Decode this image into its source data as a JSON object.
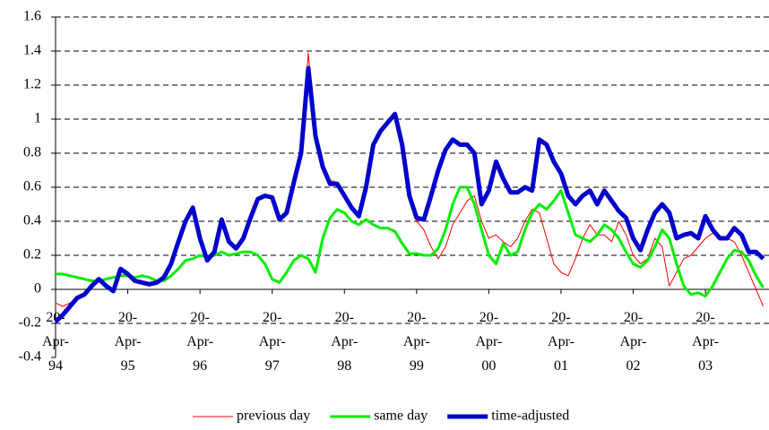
{
  "chart_data": {
    "type": "line",
    "x": [
      1994.3,
      1994.4,
      1994.5,
      1994.6,
      1994.7,
      1994.8,
      1994.9,
      1995.0,
      1995.1,
      1995.2,
      1995.3,
      1995.4,
      1995.5,
      1995.6,
      1995.7,
      1995.8,
      1995.9,
      1996.0,
      1996.1,
      1996.2,
      1996.3,
      1996.4,
      1996.5,
      1996.6,
      1996.7,
      1996.8,
      1996.9,
      1997.0,
      1997.1,
      1997.2,
      1997.3,
      1997.4,
      1997.5,
      1997.6,
      1997.7,
      1997.8,
      1997.9,
      1998.0,
      1998.1,
      1998.2,
      1998.3,
      1998.4,
      1998.5,
      1998.6,
      1998.7,
      1998.8,
      1998.9,
      1999.0,
      1999.1,
      1999.2,
      1999.3,
      1999.4,
      1999.5,
      1999.6,
      1999.7,
      1999.8,
      1999.9,
      2000.0,
      2000.1,
      2000.2,
      2000.3,
      2000.4,
      2000.5,
      2000.6,
      2000.7,
      2000.8,
      2000.9,
      2001.0,
      2001.1,
      2001.2,
      2001.3,
      2001.4,
      2001.5,
      2001.6,
      2001.7,
      2001.8,
      2001.9,
      2002.0,
      2002.1,
      2002.2,
      2002.3,
      2002.4,
      2002.5,
      2002.6,
      2002.7,
      2002.8,
      2002.9,
      2003.0,
      2003.1,
      2003.2,
      2003.3,
      2003.4,
      2003.5,
      2003.6,
      2003.7,
      2003.8,
      2003.9,
      2004.0,
      2004.1
    ],
    "series": [
      {
        "name": "previous day",
        "color": "#ff0000",
        "width": 1,
        "values": [
          -0.08,
          -0.1,
          -0.08,
          -0.05,
          -0.03,
          0.02,
          0.06,
          0.02,
          -0.01,
          0.12,
          0.09,
          0.05,
          0.04,
          0.03,
          0.04,
          0.07,
          0.15,
          0.28,
          0.4,
          0.47,
          0.3,
          0.17,
          0.22,
          0.4,
          0.28,
          0.24,
          0.3,
          0.42,
          0.52,
          0.54,
          0.53,
          0.41,
          0.45,
          0.63,
          0.82,
          1.39,
          0.92,
          0.72,
          0.64,
          0.63,
          0.55,
          0.48,
          0.44,
          0.6,
          0.85,
          0.93,
          0.98,
          1.02,
          0.85,
          0.55,
          0.4,
          0.35,
          0.25,
          0.18,
          0.25,
          0.38,
          0.45,
          0.52,
          0.55,
          0.4,
          0.3,
          0.32,
          0.28,
          0.25,
          0.3,
          0.4,
          0.47,
          0.45,
          0.3,
          0.15,
          0.1,
          0.08,
          0.18,
          0.3,
          0.38,
          0.32,
          0.32,
          0.28,
          0.4,
          0.32,
          0.2,
          0.15,
          0.18,
          0.3,
          0.25,
          0.02,
          0.1,
          0.18,
          0.2,
          0.25,
          0.3,
          0.33,
          0.3,
          0.3,
          0.28,
          0.2,
          0.1,
          0.0,
          -0.1
        ]
      },
      {
        "name": "same day",
        "color": "#00ee00",
        "width": 3,
        "values": [
          0.09,
          0.09,
          0.08,
          0.07,
          0.06,
          0.05,
          0.05,
          0.06,
          0.07,
          0.08,
          0.08,
          0.07,
          0.08,
          0.07,
          0.05,
          0.05,
          0.08,
          0.12,
          0.17,
          0.18,
          0.2,
          0.19,
          0.2,
          0.22,
          0.2,
          0.21,
          0.22,
          0.22,
          0.2,
          0.15,
          0.06,
          0.04,
          0.1,
          0.17,
          0.2,
          0.18,
          0.1,
          0.3,
          0.42,
          0.47,
          0.45,
          0.4,
          0.38,
          0.41,
          0.38,
          0.36,
          0.36,
          0.34,
          0.27,
          0.21,
          0.21,
          0.2,
          0.2,
          0.24,
          0.35,
          0.5,
          0.6,
          0.6,
          0.5,
          0.35,
          0.2,
          0.15,
          0.27,
          0.2,
          0.22,
          0.35,
          0.45,
          0.5,
          0.47,
          0.52,
          0.58,
          0.45,
          0.32,
          0.3,
          0.28,
          0.32,
          0.38,
          0.35,
          0.3,
          0.22,
          0.15,
          0.13,
          0.17,
          0.25,
          0.35,
          0.3,
          0.15,
          0.02,
          -0.03,
          -0.02,
          -0.04,
          0.02,
          0.1,
          0.18,
          0.23,
          0.22,
          0.17,
          0.08,
          0.01
        ]
      },
      {
        "name": "time-adjusted",
        "color": "#0000cc",
        "width": 5,
        "values": [
          -0.19,
          -0.15,
          -0.1,
          -0.05,
          -0.03,
          0.02,
          0.06,
          0.02,
          -0.01,
          0.12,
          0.09,
          0.05,
          0.04,
          0.03,
          0.04,
          0.07,
          0.15,
          0.28,
          0.4,
          0.48,
          0.3,
          0.17,
          0.22,
          0.41,
          0.28,
          0.24,
          0.3,
          0.42,
          0.53,
          0.55,
          0.54,
          0.41,
          0.45,
          0.63,
          0.8,
          1.3,
          0.9,
          0.72,
          0.62,
          0.62,
          0.55,
          0.48,
          0.43,
          0.6,
          0.85,
          0.93,
          0.98,
          1.03,
          0.85,
          0.55,
          0.42,
          0.41,
          0.55,
          0.7,
          0.82,
          0.88,
          0.85,
          0.85,
          0.8,
          0.5,
          0.58,
          0.75,
          0.65,
          0.57,
          0.57,
          0.6,
          0.58,
          0.88,
          0.85,
          0.75,
          0.68,
          0.55,
          0.5,
          0.55,
          0.58,
          0.5,
          0.58,
          0.52,
          0.46,
          0.42,
          0.3,
          0.23,
          0.35,
          0.45,
          0.5,
          0.45,
          0.3,
          0.32,
          0.33,
          0.3,
          0.43,
          0.35,
          0.3,
          0.3,
          0.36,
          0.32,
          0.22,
          0.22,
          0.18
        ]
      }
    ],
    "xlim": [
      1994.3,
      2004.18
    ],
    "xticks": [
      {
        "value": 1994.3,
        "label": "20-Apr-94"
      },
      {
        "value": 1995.3,
        "label": "20-Apr-95"
      },
      {
        "value": 1996.3,
        "label": "20-Apr-96"
      },
      {
        "value": 1997.3,
        "label": "20-Apr-97"
      },
      {
        "value": 1998.3,
        "label": "20-Apr-98"
      },
      {
        "value": 1999.3,
        "label": "20-Apr-99"
      },
      {
        "value": 2000.3,
        "label": "20-Apr-00"
      },
      {
        "value": 2001.3,
        "label": "20-Apr-01"
      },
      {
        "value": 2002.3,
        "label": "20-Apr-02"
      },
      {
        "value": 2003.3,
        "label": "20-Apr-03"
      }
    ],
    "ylim": [
      -0.4,
      1.6
    ],
    "yticks": [
      -0.4,
      -0.2,
      0,
      0.2,
      0.4,
      0.6,
      0.8,
      1,
      1.2,
      1.4,
      1.6
    ],
    "grid": true,
    "legend": "bottom"
  }
}
